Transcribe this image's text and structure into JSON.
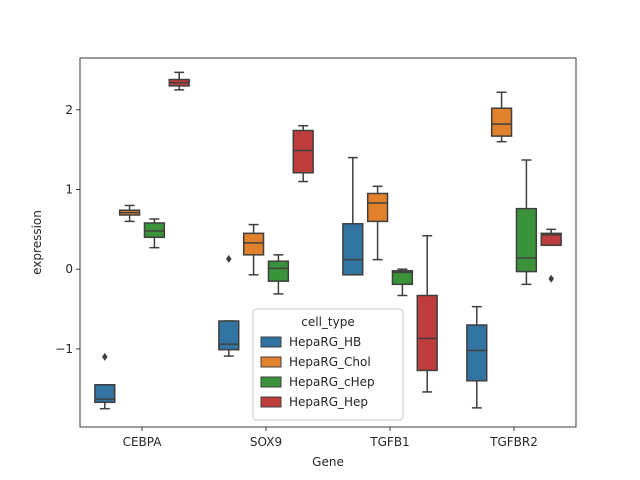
{
  "chart_data": {
    "type": "box",
    "xlabel": "Gene",
    "ylabel": "expression",
    "categories": [
      "CEBPA",
      "SOX9",
      "TGFB1",
      "TGFBR2"
    ],
    "ylim": [
      -1.98,
      2.65
    ],
    "yticks": [
      -1,
      0,
      1,
      2
    ],
    "ytick_labels": [
      "−1",
      "0",
      "1",
      "2"
    ],
    "grid": false,
    "legend": {
      "title": "cell_type",
      "placement": "lower-center"
    },
    "series": [
      {
        "name": "HepaRG_HB",
        "color": "#3274a1",
        "boxes": [
          {
            "whislo": -1.75,
            "q1": -1.67,
            "med": -1.63,
            "q3": -1.45,
            "whishi": -1.45,
            "fliers": [
              -1.1
            ]
          },
          {
            "whislo": -1.09,
            "q1": -1.01,
            "med": -0.94,
            "q3": -0.65,
            "whishi": -0.65,
            "fliers": [
              0.13
            ]
          },
          {
            "whislo": -0.07,
            "q1": -0.07,
            "med": 0.12,
            "q3": 0.57,
            "whishi": 1.4,
            "fliers": []
          },
          {
            "whislo": -1.74,
            "q1": -1.4,
            "med": -1.02,
            "q3": -0.7,
            "whishi": -0.47,
            "fliers": []
          }
        ]
      },
      {
        "name": "HepaRG_Chol",
        "color": "#e1812c",
        "boxes": [
          {
            "whislo": 0.6,
            "q1": 0.68,
            "med": 0.71,
            "q3": 0.74,
            "whishi": 0.8,
            "fliers": []
          },
          {
            "whislo": -0.07,
            "q1": 0.18,
            "med": 0.33,
            "q3": 0.45,
            "whishi": 0.56,
            "fliers": []
          },
          {
            "whislo": 0.12,
            "q1": 0.6,
            "med": 0.83,
            "q3": 0.95,
            "whishi": 1.04,
            "fliers": []
          },
          {
            "whislo": 1.6,
            "q1": 1.67,
            "med": 1.82,
            "q3": 2.02,
            "whishi": 2.22,
            "fliers": []
          }
        ]
      },
      {
        "name": "HepaRG_cHep",
        "color": "#3a923a",
        "boxes": [
          {
            "whislo": 0.27,
            "q1": 0.4,
            "med": 0.48,
            "q3": 0.58,
            "whishi": 0.63,
            "fliers": []
          },
          {
            "whislo": -0.31,
            "q1": -0.15,
            "med": 0.01,
            "q3": 0.1,
            "whishi": 0.18,
            "fliers": []
          },
          {
            "whislo": -0.33,
            "q1": -0.19,
            "med": -0.04,
            "q3": -0.02,
            "whishi": 0.0,
            "fliers": []
          },
          {
            "whislo": -0.19,
            "q1": -0.03,
            "med": 0.14,
            "q3": 0.76,
            "whishi": 1.37,
            "fliers": []
          }
        ]
      },
      {
        "name": "HepaRG_Hep",
        "color": "#c03d3e",
        "boxes": [
          {
            "whislo": 2.25,
            "q1": 2.3,
            "med": 2.34,
            "q3": 2.38,
            "whishi": 2.47,
            "fliers": []
          },
          {
            "whislo": 1.1,
            "q1": 1.21,
            "med": 1.49,
            "q3": 1.74,
            "whishi": 1.8,
            "fliers": []
          },
          {
            "whislo": -1.54,
            "q1": -1.27,
            "med": -0.87,
            "q3": -0.33,
            "whishi": 0.42,
            "fliers": []
          },
          {
            "whislo": 0.3,
            "q1": 0.3,
            "med": 0.43,
            "q3": 0.45,
            "whishi": 0.5,
            "fliers": [
              -0.12
            ]
          }
        ]
      }
    ]
  }
}
